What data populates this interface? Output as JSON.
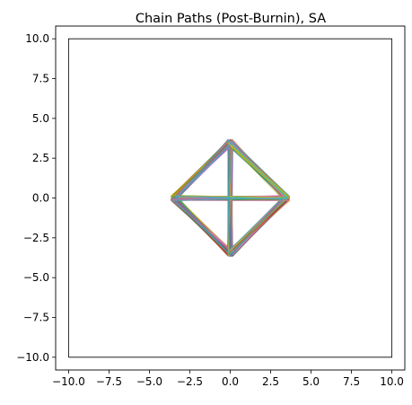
{
  "chart_data": {
    "type": "line",
    "title": "Chain Paths (Post-Burnin), SA",
    "xlabel": "",
    "ylabel": "",
    "xlim": [
      -10.8,
      10.8
    ],
    "ylim": [
      -10.8,
      10.8
    ],
    "xticks": [
      -10.0,
      -7.5,
      -5.0,
      -2.5,
      0.0,
      2.5,
      5.0,
      7.5,
      10.0
    ],
    "yticks": [
      -10.0,
      -7.5,
      -5.0,
      -2.5,
      0.0,
      2.5,
      5.0,
      7.5,
      10.0
    ],
    "xtick_labels": [
      "−10.0",
      "−7.5",
      "−5.0",
      "−2.5",
      "0.0",
      "2.5",
      "5.0",
      "7.5",
      "10.0"
    ],
    "ytick_labels": [
      "−10.0",
      "−7.5",
      "−5.0",
      "−2.5",
      "0.0",
      "2.5",
      "5.0",
      "7.5",
      "10.0"
    ],
    "grid": false,
    "boundary_box": [
      [
        -10,
        -10
      ],
      [
        10,
        -10
      ],
      [
        10,
        10
      ],
      [
        -10,
        10
      ],
      [
        -10,
        -10
      ]
    ],
    "diamond_vertices": [
      [
        0,
        3.5
      ],
      [
        3.5,
        0
      ],
      [
        0,
        -3.5
      ],
      [
        -3.5,
        0
      ]
    ],
    "series_colors": [
      "#1f77b4",
      "#ff7f0e",
      "#2ca02c",
      "#d62728",
      "#9467bd",
      "#8c564b",
      "#e377c2",
      "#7f7f7f",
      "#bcbd22",
      "#17becf"
    ],
    "num_paths": 60
  }
}
